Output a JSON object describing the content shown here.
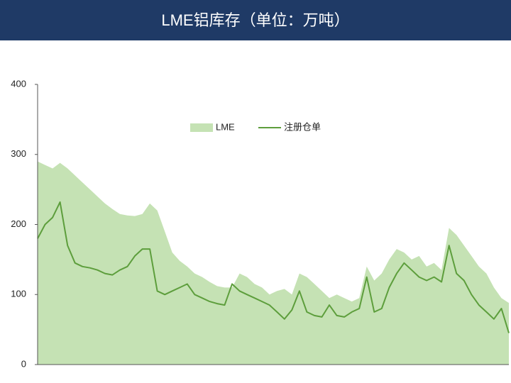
{
  "chart_data": {
    "type": "area-line",
    "title": "LME铝库存（单位：万吨）",
    "categories": [
      null,
      null,
      null,
      null,
      null,
      null,
      null,
      null,
      null,
      null,
      null,
      null,
      null,
      null,
      null,
      null,
      null,
      null,
      null,
      null,
      null,
      null,
      null,
      null,
      null,
      null,
      null,
      null,
      null,
      null,
      null,
      null,
      null,
      null,
      null,
      null,
      null,
      null,
      null,
      null,
      null,
      null,
      null,
      null,
      null,
      null,
      null,
      null,
      null,
      null,
      null,
      null,
      null,
      null,
      null,
      null,
      null,
      null,
      null,
      null,
      null,
      null,
      null,
      null
    ],
    "series": [
      {
        "name": "LME",
        "kind": "area",
        "color": "#c5e2b4",
        "values": [
          290,
          285,
          280,
          288,
          280,
          270,
          260,
          250,
          240,
          230,
          222,
          215,
          213,
          212,
          215,
          230,
          220,
          190,
          160,
          148,
          140,
          130,
          125,
          118,
          112,
          110,
          110,
          130,
          125,
          115,
          110,
          100,
          105,
          108,
          100,
          130,
          125,
          115,
          105,
          95,
          100,
          95,
          90,
          95,
          140,
          120,
          130,
          150,
          165,
          160,
          150,
          155,
          140,
          145,
          135,
          195,
          185,
          170,
          155,
          140,
          130,
          110,
          95,
          88
        ]
      },
      {
        "name": "注册仓单",
        "kind": "line",
        "color": "#5d9e3c",
        "values": [
          180,
          200,
          210,
          232,
          170,
          145,
          140,
          138,
          135,
          130,
          128,
          135,
          140,
          155,
          165,
          165,
          105,
          100,
          105,
          110,
          115,
          100,
          95,
          90,
          87,
          85,
          115,
          105,
          100,
          95,
          90,
          85,
          75,
          65,
          78,
          105,
          75,
          70,
          68,
          85,
          70,
          68,
          75,
          80,
          125,
          75,
          80,
          110,
          130,
          145,
          135,
          125,
          120,
          125,
          118,
          170,
          130,
          120,
          100,
          85,
          75,
          65,
          80,
          45
        ]
      }
    ],
    "ylim": [
      0,
      400
    ],
    "yticks": [
      0,
      100,
      200,
      300,
      400
    ],
    "grid": false,
    "legend": "top"
  }
}
